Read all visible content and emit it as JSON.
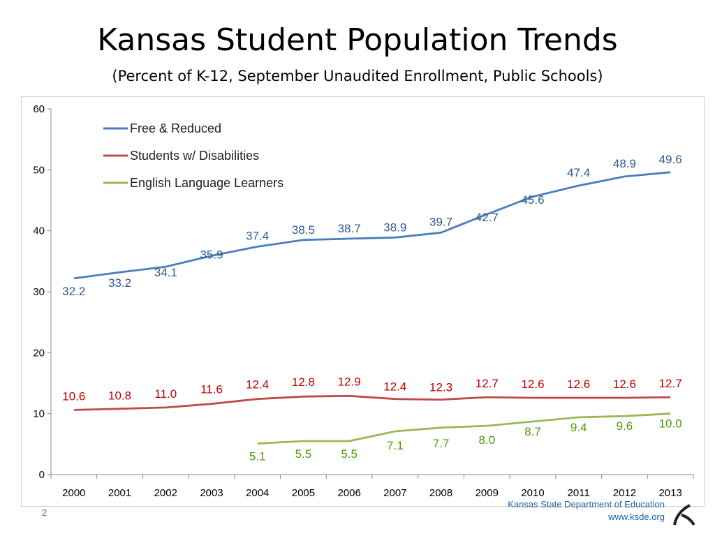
{
  "slide": {
    "title": "Kansas Student Population Trends",
    "subtitle": "(Percent of K-12, September Unaudited Enrollment, Public Schools)",
    "number": "2",
    "footer_org": "Kansas State Department of Education",
    "footer_url": "www.ksde.org",
    "accent_color": "#1f5fa8"
  },
  "chart_data": {
    "type": "line",
    "title": "",
    "xlabel": "",
    "ylabel": "",
    "categories": [
      "2000",
      "2001",
      "2002",
      "2003",
      "2004",
      "2005",
      "2006",
      "2007",
      "2008",
      "2009",
      "2010",
      "2011",
      "2012",
      "2013"
    ],
    "ylim": [
      0,
      60
    ],
    "yticks": [
      0,
      10,
      20,
      30,
      40,
      50,
      60
    ],
    "grid": false,
    "legend_position": "top-left",
    "series": [
      {
        "name": "Free & Reduced",
        "color": "#4a7ebb",
        "label_color": "#2e5b93",
        "values": [
          32.2,
          33.2,
          34.1,
          35.9,
          37.4,
          38.5,
          38.7,
          38.9,
          39.7,
          42.7,
          45.6,
          47.4,
          48.9,
          49.6
        ],
        "labels": [
          "32.2",
          "33.2",
          "34.1",
          "35.9",
          "37.4",
          "38.5",
          "38.7",
          "38.9",
          "39.7",
          "42.7",
          "45.6",
          "47.4",
          "48.9",
          "49.6"
        ]
      },
      {
        "name": "Students w/ Disabilities",
        "color": "#be4b48",
        "label_color": "#c00000",
        "values": [
          10.6,
          10.8,
          11.0,
          11.6,
          12.4,
          12.8,
          12.9,
          12.4,
          12.3,
          12.7,
          12.6,
          12.6,
          12.6,
          12.7
        ],
        "labels": [
          "10.6",
          "10.8",
          "11.0",
          "11.6",
          "12.4",
          "12.8",
          "12.9",
          "12.4",
          "12.3",
          "12.7",
          "12.6",
          "12.6",
          "12.6",
          "12.7"
        ]
      },
      {
        "name": "English Language Learners",
        "color": "#98b954",
        "label_color": "#4e9a06",
        "values": [
          null,
          null,
          null,
          null,
          5.1,
          5.5,
          5.5,
          7.1,
          7.7,
          8.0,
          8.7,
          9.4,
          9.6,
          10.0
        ],
        "labels": [
          "",
          "",
          "",
          "",
          "5.1",
          "5.5",
          "5.5",
          "7.1",
          "7.7",
          "8.0",
          "8.7",
          "9.4",
          "9.6",
          "10.0"
        ]
      }
    ]
  }
}
